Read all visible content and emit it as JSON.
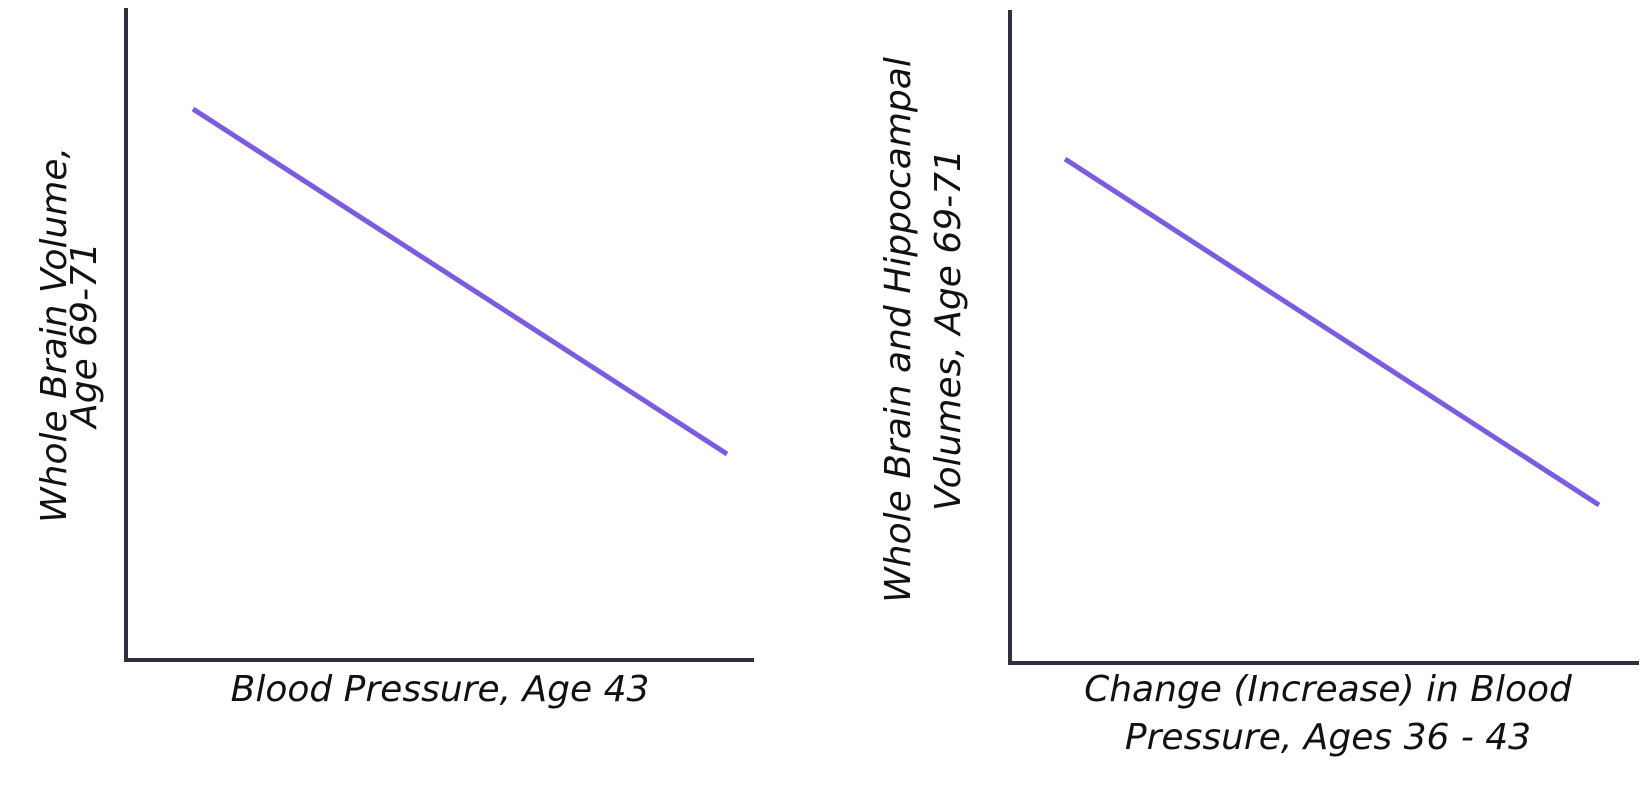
{
  "charts": [
    {
      "y_label": [
        "Whole Brain Volume,",
        "Age 69-71"
      ],
      "x_label": [
        "Blood Pressure, Age 43"
      ]
    },
    {
      "y_label": [
        "Whole Brain and Hippocampal",
        "Volumes, Age 69-71"
      ],
      "x_label": [
        "Change (Increase) in Blood",
        "Pressure, Ages 36 - 43"
      ]
    }
  ]
}
